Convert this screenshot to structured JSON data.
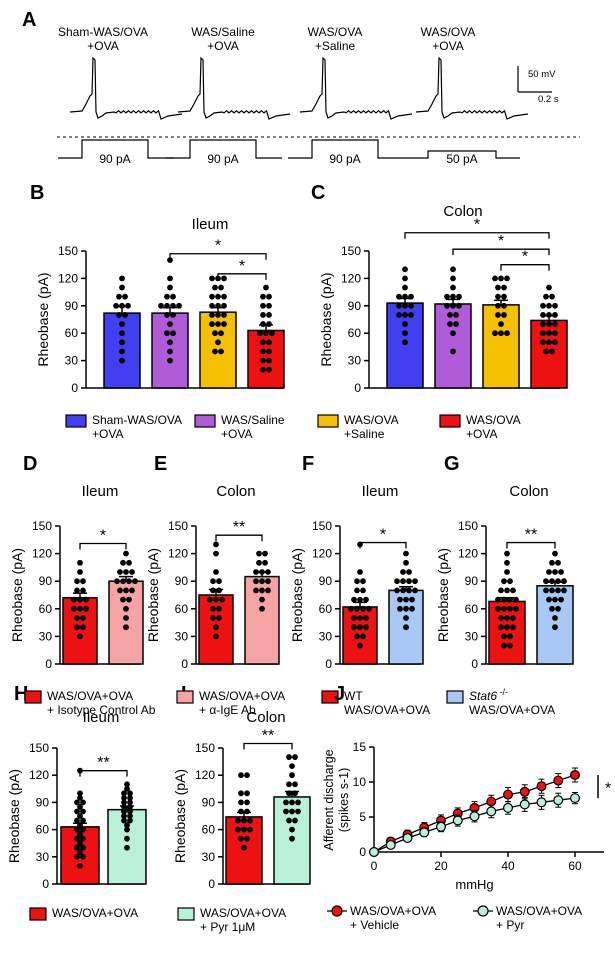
{
  "colors": {
    "blue": "#4040F0",
    "purple": "#B05CD8",
    "gold": "#F5C000",
    "red": "#EE1111",
    "pink": "#F5A3A3",
    "lightblue": "#A8C8F5",
    "mint": "#B8F0D8"
  },
  "panel_a": {
    "letter": "A",
    "traces": [
      {
        "label_top": "Sham-WAS/OVA",
        "label_bottom": "+OVA",
        "current": "90 pA"
      },
      {
        "label_top": "WAS/Saline",
        "label_bottom": "+OVA",
        "current": "90 pA"
      },
      {
        "label_top": "WAS/OVA",
        "label_bottom": "+Saline",
        "current": "90 pA"
      },
      {
        "label_top": "WAS/OVA",
        "label_bottom": "+OVA",
        "current": "50 pA"
      }
    ],
    "scalebar_v": "50 mV",
    "scalebar_h": "0.2 s"
  },
  "legend_bc": [
    {
      "line1": "Sham-WAS/OVA",
      "line2": "+OVA",
      "color": "#4040F0"
    },
    {
      "line1": "WAS/Saline",
      "line2": "+OVA",
      "color": "#B05CD8"
    },
    {
      "line1": "WAS/OVA",
      "line2": "+Saline",
      "color": "#F5C000"
    },
    {
      "line1": "WAS/OVA",
      "line2": "+OVA",
      "color": "#EE1111"
    }
  ],
  "legend_de": [
    {
      "line1": "WAS/OVA+OVA",
      "line2": "+ Isotype Control Ab",
      "color": "#EE1111"
    },
    {
      "line1": "WAS/OVA+OVA",
      "line2": "+ α-IgE Ab",
      "color": "#F5A3A3"
    }
  ],
  "legend_fg": [
    {
      "line1": "WT",
      "line2": "WAS/OVA+OVA",
      "color": "#EE1111"
    },
    {
      "line1": "Stat6 -/-",
      "line2": "WAS/OVA+OVA",
      "color": "#A8C8F5"
    }
  ],
  "legend_hi": [
    {
      "line1": "WAS/OVA+OVA",
      "line2": "",
      "color": "#EE1111"
    },
    {
      "line1": "WAS/OVA+OVA",
      "line2": "+ Pyr 1μM",
      "color": "#B8F0D8"
    }
  ],
  "legend_j": [
    {
      "line1": "WAS/OVA+OVA",
      "line2": "+ Vehicle",
      "color": "#EE1111"
    },
    {
      "line1": "WAS/OVA+OVA",
      "line2": "+ Pyr",
      "color": "#B8F0D8"
    }
  ],
  "chart_data": [
    {
      "panel": "B",
      "type": "bar",
      "title": "Ileum",
      "ylabel": "Rheobase (pA)",
      "ylim": [
        0,
        150
      ],
      "yticks": [
        0,
        30,
        60,
        90,
        120,
        150
      ],
      "categories": [
        "Sham-WAS/OVA +OVA",
        "WAS/Saline +OVA",
        "WAS/OVA +Saline",
        "WAS/OVA +OVA"
      ],
      "values": [
        82,
        82,
        83,
        63
      ],
      "errors": [
        7,
        6,
        5,
        6
      ],
      "colors": [
        "#4040F0",
        "#B05CD8",
        "#F5C000",
        "#EE1111"
      ],
      "points": [
        [
          120,
          110,
          100,
          100,
          90,
          90,
          90,
          80,
          80,
          70,
          60,
          50,
          40,
          30
        ],
        [
          140,
          120,
          110,
          100,
          100,
          90,
          90,
          90,
          90,
          80,
          80,
          70,
          60,
          60,
          50,
          40,
          30
        ],
        [
          120,
          120,
          120,
          110,
          110,
          100,
          100,
          100,
          90,
          90,
          90,
          80,
          80,
          80,
          70,
          70,
          70,
          60,
          60,
          50,
          40,
          40
        ],
        [
          110,
          100,
          100,
          90,
          90,
          80,
          80,
          70,
          70,
          60,
          60,
          60,
          50,
          50,
          40,
          40,
          30,
          30,
          20,
          20
        ]
      ],
      "significance": [
        {
          "from": 1,
          "to": 3,
          "label": "*",
          "y": 147
        },
        {
          "from": 2,
          "to": 3,
          "label": "*",
          "y": 125
        }
      ]
    },
    {
      "panel": "C",
      "type": "bar",
      "title": "Colon",
      "ylabel": "Rheobase (pA)",
      "ylim": [
        0,
        150
      ],
      "yticks": [
        0,
        30,
        60,
        90,
        120,
        150
      ],
      "categories": [
        "Sham-WAS/OVA +OVA",
        "WAS/Saline +OVA",
        "WAS/OVA +Saline",
        "WAS/OVA +OVA"
      ],
      "values": [
        93,
        92,
        91,
        74
      ],
      "errors": [
        5,
        5,
        5,
        5
      ],
      "colors": [
        "#4040F0",
        "#B05CD8",
        "#F5C000",
        "#EE1111"
      ],
      "points": [
        [
          130,
          120,
          110,
          100,
          100,
          100,
          90,
          90,
          90,
          80,
          80,
          80,
          70,
          60,
          50
        ],
        [
          130,
          120,
          110,
          100,
          100,
          100,
          90,
          90,
          90,
          80,
          80,
          70,
          70,
          60,
          40
        ],
        [
          120,
          120,
          120,
          110,
          110,
          100,
          100,
          90,
          90,
          80,
          80,
          70,
          60,
          60,
          60
        ],
        [
          110,
          100,
          100,
          90,
          90,
          90,
          80,
          80,
          80,
          70,
          70,
          70,
          60,
          60,
          60,
          50,
          50,
          50,
          40,
          40
        ]
      ],
      "significance": [
        {
          "from": 0,
          "to": 3,
          "label": "*",
          "y": 170
        },
        {
          "from": 1,
          "to": 3,
          "label": "*",
          "y": 152
        },
        {
          "from": 2,
          "to": 3,
          "label": "*",
          "y": 135
        }
      ]
    },
    {
      "panel": "D",
      "type": "bar",
      "title": "Ileum",
      "ylabel": "Rheobase (pA)",
      "ylim": [
        0,
        150
      ],
      "yticks": [
        0,
        30,
        60,
        90,
        120,
        150
      ],
      "categories": [
        "WAS/OVA+OVA + Isotype Control Ab",
        "WAS/OVA+OVA + α-IgE Ab"
      ],
      "values": [
        72,
        90
      ],
      "errors": [
        5,
        5
      ],
      "colors": [
        "#EE1111",
        "#F5A3A3"
      ],
      "points": [
        [
          110,
          100,
          90,
          90,
          80,
          80,
          70,
          70,
          70,
          60,
          60,
          60,
          50,
          50,
          40,
          40,
          30
        ],
        [
          120,
          110,
          110,
          100,
          100,
          100,
          90,
          90,
          90,
          90,
          80,
          80,
          80,
          70,
          70,
          60,
          50,
          40
        ]
      ],
      "significance": [
        {
          "from": 0,
          "to": 1,
          "label": "*",
          "y": 131
        }
      ]
    },
    {
      "panel": "E",
      "type": "bar",
      "title": "Colon",
      "ylabel": "Rheobase (pA)",
      "ylim": [
        0,
        150
      ],
      "yticks": [
        0,
        30,
        60,
        90,
        120,
        150
      ],
      "categories": [
        "WAS/OVA+OVA + Isotype Control Ab",
        "WAS/OVA+OVA + α-IgE Ab"
      ],
      "values": [
        75,
        95
      ],
      "errors": [
        6,
        5
      ],
      "colors": [
        "#EE1111",
        "#F5A3A3"
      ],
      "points": [
        [
          130,
          120,
          100,
          90,
          90,
          80,
          80,
          70,
          70,
          70,
          60,
          60,
          50,
          50,
          40,
          30
        ],
        [
          120,
          120,
          110,
          110,
          100,
          100,
          100,
          90,
          90,
          90,
          80,
          80,
          80,
          70,
          60
        ]
      ],
      "significance": [
        {
          "from": 0,
          "to": 1,
          "label": "**",
          "y": 140
        }
      ]
    },
    {
      "panel": "F",
      "type": "bar",
      "title": "Ileum",
      "ylabel": "Rheobase (pA)",
      "ylim": [
        0,
        150
      ],
      "yticks": [
        0,
        30,
        60,
        90,
        120,
        150
      ],
      "categories": [
        "WT WAS/OVA+OVA",
        "Stat6 -/- WAS/OVA+OVA"
      ],
      "values": [
        62,
        80
      ],
      "errors": [
        5,
        4
      ],
      "colors": [
        "#EE1111",
        "#A8C8F5"
      ],
      "points": [
        [
          130,
          100,
          90,
          90,
          80,
          80,
          70,
          70,
          70,
          60,
          60,
          60,
          60,
          50,
          50,
          50,
          40,
          40,
          40,
          30,
          30,
          20
        ],
        [
          120,
          110,
          100,
          100,
          90,
          90,
          90,
          90,
          80,
          80,
          80,
          80,
          70,
          70,
          70,
          60,
          60,
          60,
          50,
          40
        ]
      ],
      "significance": [
        {
          "from": 0,
          "to": 1,
          "label": "*",
          "y": 132
        }
      ]
    },
    {
      "panel": "G",
      "type": "bar",
      "title": "Colon",
      "ylabel": "Rheobase (pA)",
      "ylim": [
        0,
        150
      ],
      "yticks": [
        0,
        30,
        60,
        90,
        120,
        150
      ],
      "categories": [
        "WT WAS/OVA+OVA",
        "Stat6 -/- WAS/OVA+OVA"
      ],
      "values": [
        68,
        85
      ],
      "errors": [
        4,
        4
      ],
      "colors": [
        "#EE1111",
        "#A8C8F5"
      ],
      "points": [
        [
          120,
          110,
          100,
          90,
          90,
          80,
          80,
          80,
          70,
          70,
          70,
          70,
          60,
          60,
          60,
          60,
          50,
          50,
          50,
          40,
          40,
          40,
          30,
          30,
          20,
          20
        ],
        [
          120,
          110,
          110,
          100,
          100,
          100,
          90,
          90,
          90,
          90,
          80,
          80,
          80,
          80,
          70,
          70,
          70,
          60,
          60,
          50,
          40
        ]
      ],
      "significance": [
        {
          "from": 0,
          "to": 1,
          "label": "**",
          "y": 132
        }
      ]
    },
    {
      "panel": "H",
      "type": "bar",
      "title": "Ileum",
      "ylabel": "Rheobase (pA)",
      "ylim": [
        0,
        150
      ],
      "yticks": [
        0,
        30,
        60,
        90,
        120,
        150
      ],
      "categories": [
        "WAS/OVA+OVA",
        "WAS/OVA+OVA + Pyr 1μM"
      ],
      "values": [
        63,
        82
      ],
      "errors": [
        4,
        4
      ],
      "colors": [
        "#EE1111",
        "#B8F0D8"
      ],
      "points": [
        [
          125,
          100,
          95,
          90,
          90,
          85,
          80,
          80,
          75,
          70,
          70,
          65,
          60,
          60,
          55,
          50,
          50,
          45,
          40,
          40,
          35,
          30,
          30,
          20
        ],
        [
          110,
          105,
          100,
          100,
          95,
          95,
          90,
          90,
          85,
          85,
          80,
          80,
          75,
          75,
          70,
          70,
          65,
          60,
          50,
          40
        ]
      ],
      "significance": [
        {
          "from": 0,
          "to": 1,
          "label": "**",
          "y": 125
        }
      ]
    },
    {
      "panel": "I",
      "type": "bar",
      "title": "Colon",
      "ylabel": "Rheobase (pA)",
      "ylim": [
        0,
        150
      ],
      "yticks": [
        0,
        30,
        60,
        90,
        120,
        150
      ],
      "categories": [
        "WAS/OVA+OVA",
        "WAS/OVA+OVA + Pyr 1μM"
      ],
      "values": [
        74,
        96
      ],
      "errors": [
        5,
        6
      ],
      "colors": [
        "#EE1111",
        "#B8F0D8"
      ],
      "points": [
        [
          120,
          120,
          100,
          100,
          90,
          90,
          80,
          80,
          70,
          70,
          70,
          60,
          60,
          60,
          50,
          50,
          40
        ],
        [
          140,
          140,
          130,
          120,
          110,
          110,
          100,
          100,
          90,
          90,
          90,
          80,
          80,
          80,
          70,
          70,
          60,
          50
        ]
      ],
      "significance": [
        {
          "from": 0,
          "to": 1,
          "label": "**",
          "y": 155
        }
      ]
    },
    {
      "panel": "J",
      "type": "line",
      "title": "",
      "xlabel": "mmHg",
      "ylabel": "Afferent discharge (spikes s-1)",
      "xlim": [
        0,
        60
      ],
      "ylim": [
        0,
        15
      ],
      "xticks": [
        0,
        20,
        40,
        60
      ],
      "yticks": [
        0,
        5,
        10,
        15
      ],
      "x": [
        0,
        5,
        10,
        15,
        20,
        25,
        30,
        35,
        40,
        45,
        50,
        55,
        60
      ],
      "series": [
        {
          "name": "WAS/OVA+OVA + Vehicle",
          "color": "#EE1111",
          "values": [
            0,
            1.5,
            2.5,
            3.5,
            4.5,
            5.5,
            6.3,
            7.2,
            8.2,
            8.6,
            9.4,
            10.2,
            11.0
          ],
          "errors": [
            0,
            0.4,
            0.6,
            0.7,
            0.8,
            0.8,
            0.9,
            0.9,
            1.0,
            1.0,
            1.0,
            1.0,
            1.0
          ]
        },
        {
          "name": "WAS/OVA+OVA + Pyr",
          "color": "#B8F0D8",
          "values": [
            0,
            1.0,
            2.0,
            2.8,
            3.6,
            4.5,
            5.1,
            5.8,
            6.3,
            6.8,
            7.1,
            7.4,
            7.7
          ],
          "errors": [
            0,
            0.3,
            0.5,
            0.6,
            0.7,
            0.8,
            0.8,
            0.9,
            0.9,
            1.0,
            1.0,
            1.0,
            0.8
          ]
        }
      ],
      "significance": "*"
    }
  ]
}
